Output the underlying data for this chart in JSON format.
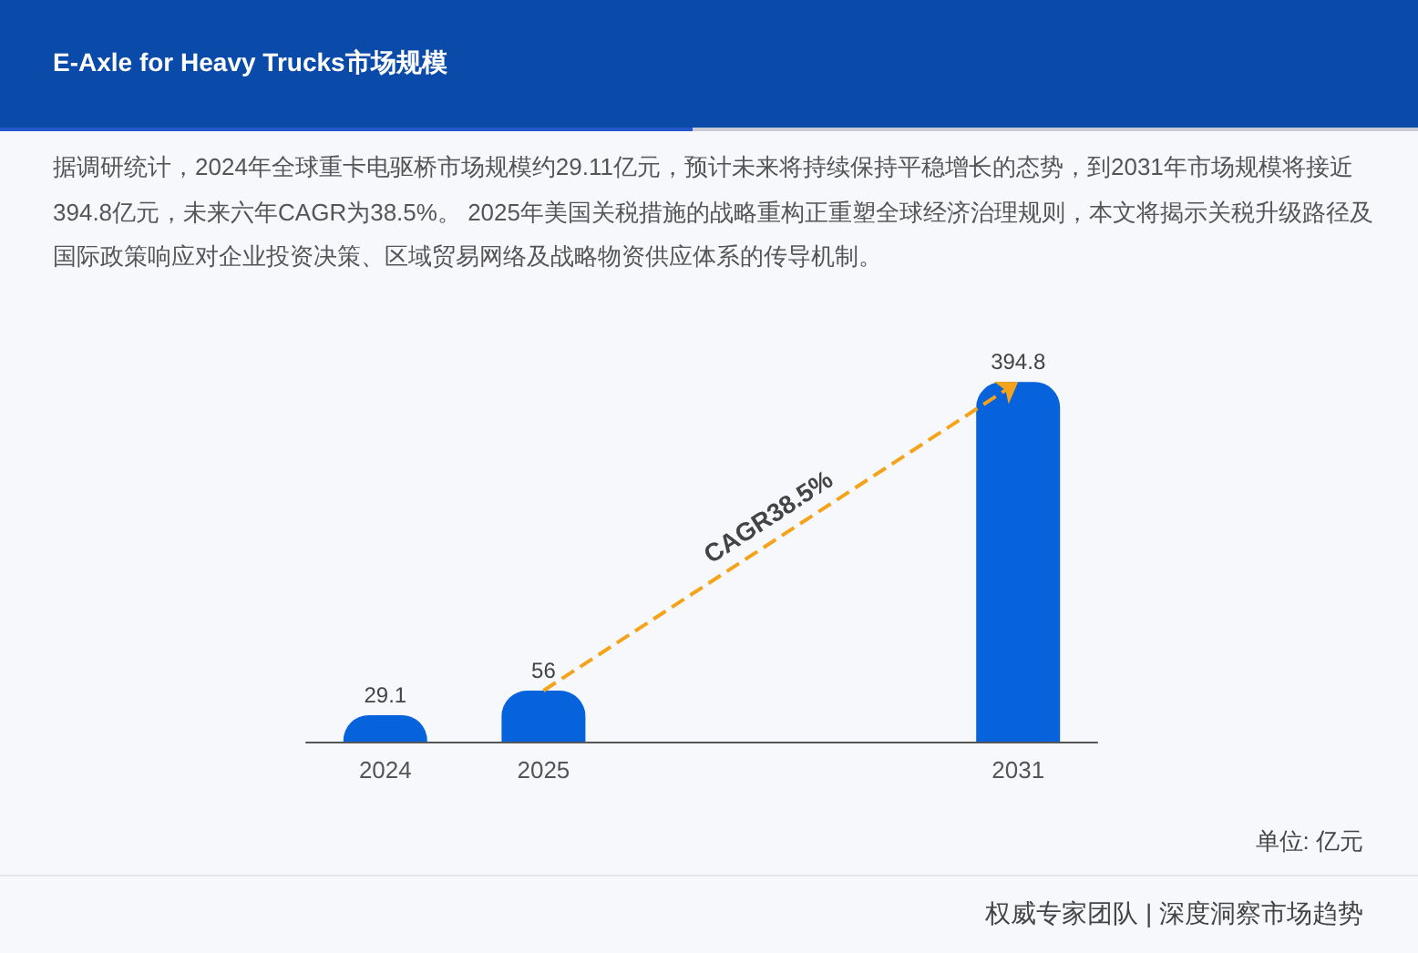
{
  "chart_data": {
    "type": "bar",
    "title": "E-Axle for Heavy Trucks市场规模",
    "subtitle": "据调研统计，2024年全球重卡电驱桥市场规模约29.11亿元，预计未来将持续保持平稳增长的态势，到2031年市场规模将接近394.8亿元，未来六年CAGR为38.5%。 2025年美国关税措施的战略重构正重塑全球经济治理规则，本文将揭示关税升级路径及国际政策响应对企业投资决策、区域贸易网络及战略物资供应体系的传导机制。",
    "categories": [
      "2024",
      "2025",
      null,
      null,
      "2031"
    ],
    "values": [
      29.1,
      56,
      null,
      null,
      394.8
    ],
    "color": "#0763dc",
    "data_labels": true,
    "annotations": [
      "CAGR38.5%",
      "单位: 亿元",
      "权威专家团队 | 深度洞察市场趋势"
    ]
  }
}
